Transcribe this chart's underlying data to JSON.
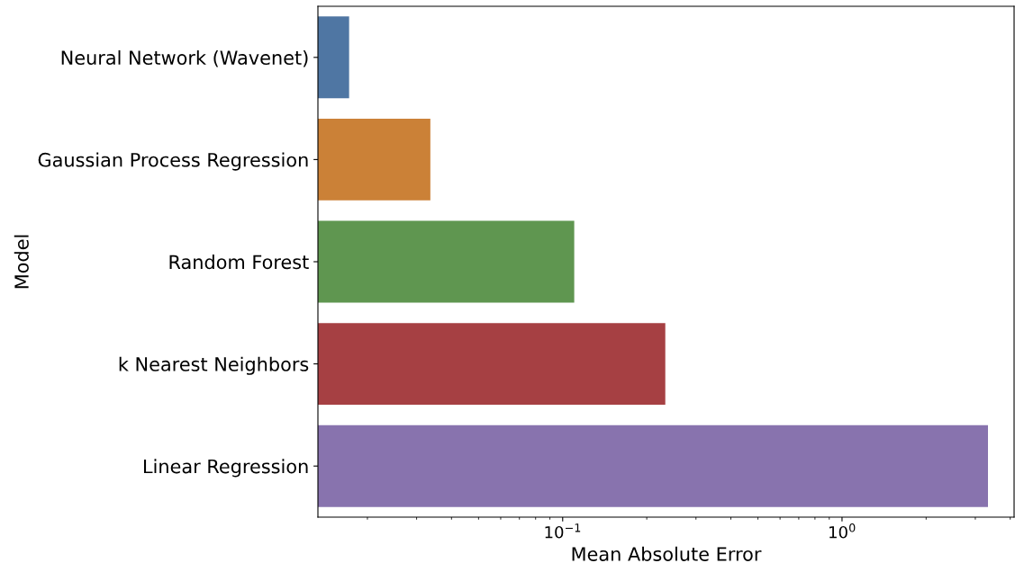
{
  "chart_data": {
    "type": "bar",
    "orientation": "horizontal",
    "log": "x",
    "categories": [
      "Neural Network (Wavenet)",
      "Gaussian Process Regression",
      "Random Forest",
      "k Nearest Neighbors",
      "Linear Regression"
    ],
    "values": [
      0.0172,
      0.0336,
      0.11,
      0.233,
      3.33
    ],
    "colors": [
      "#4f76a3",
      "#cb8137",
      "#5f9650",
      "#a64043",
      "#8873ae"
    ],
    "xlabel": "Mean Absolute Error",
    "ylabel": "Model",
    "xlim": [
      0.0133,
      4.13
    ],
    "xticks": [
      {
        "value": 0.1,
        "label": "10$^{−1}$"
      },
      {
        "value": 1,
        "label": "10$^{0}$"
      }
    ],
    "grid": false,
    "legend": false
  }
}
